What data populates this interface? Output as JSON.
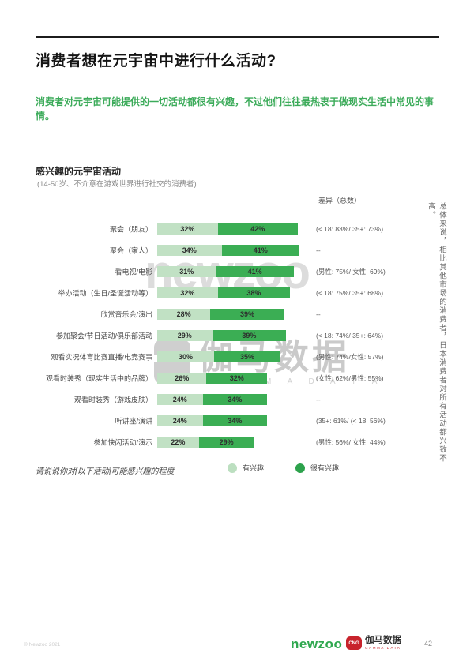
{
  "page": {
    "title": "消费者想在元宇宙中进行什么活动?",
    "intro": "消费者对元宇宙可能提供的一切活动都很有兴趣，不过他们往往最热衷于做现实生活中常见的事情。"
  },
  "chart_data": {
    "type": "bar",
    "orientation": "horizontal",
    "stacked": true,
    "unit": "%",
    "title": "感兴趣的元宇宙活动",
    "subtitle": "(14-50岁、不介意在游戏世界进行社交的消费者)",
    "diff_header": "差异（总数）",
    "categories": [
      "聚会（朋友）",
      "聚会（家人）",
      "看电视/电影",
      "举办活动（生日/圣诞活动等）",
      "欣赏音乐会/演出",
      "参加聚会/节日活动/俱乐部活动",
      "观看实况体育比赛直播/电竞赛事",
      "观看时装秀（现实生活中的品牌）",
      "观看时装秀（游戏皮肤）",
      "听讲座/演讲",
      "参加快闪活动/演示"
    ],
    "series": [
      {
        "name": "有兴趣",
        "values": [
          32,
          34,
          31,
          32,
          28,
          29,
          30,
          26,
          24,
          24,
          22
        ]
      },
      {
        "name": "很有兴趣",
        "values": [
          42,
          41,
          41,
          38,
          39,
          39,
          35,
          32,
          34,
          34,
          29
        ]
      }
    ],
    "notes": [
      "(< 18: 83%/ 35+: 73%)",
      "--",
      "(男性: 75%/ 女性: 69%)",
      "(< 18: 75%/ 35+: 68%)",
      "--",
      "(< 18: 74%/ 35+: 64%)",
      "(男性: 74%/女性: 57%)",
      "(女性: 62%/男性: 55%)",
      "--",
      "(35+: 61%/ (< 18: 56%)",
      "(男性: 56%/ 女性: 44%)"
    ],
    "colors": {
      "interested": "#c1e1c4",
      "very_interested": "#3bae54"
    },
    "legend": [
      {
        "label": "有兴趣",
        "color": "#bcdfc0"
      },
      {
        "label": "很有兴趣",
        "color": "#2da24c"
      }
    ],
    "legend_position": "bottom",
    "footnote": "请说说你对[以下活动]可能感兴趣的程度",
    "side_note": "总体来说，相比其他市场的消费者，日本消费者对所有活动都兴致不高。"
  },
  "watermarks": {
    "newzoo": "newzoo",
    "gamma_text": "伽马数据",
    "gamma_sub": "G A M M A  D A T A"
  },
  "footer": {
    "copyright": "© Newzoo 2021",
    "newzoo_logo": "newzoo",
    "cng_icon_text": "CNG",
    "cng_name": "伽马数据",
    "cng_sub": "GAMMA DATA",
    "page_number": "42"
  }
}
